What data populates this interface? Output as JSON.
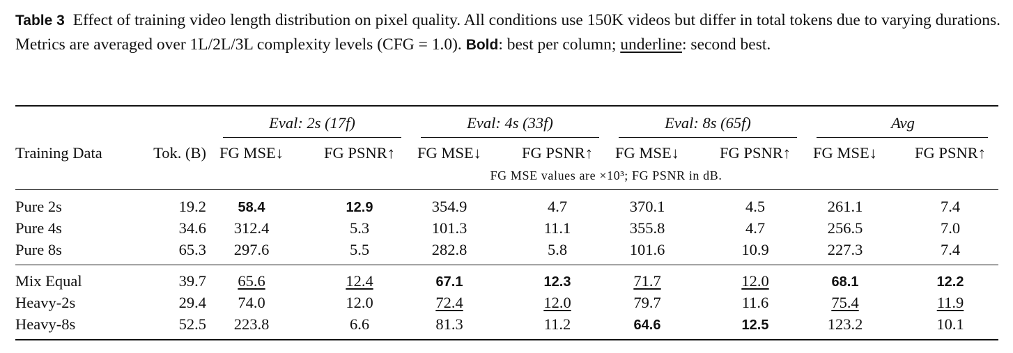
{
  "caption": {
    "label": "Table 3",
    "text_1": "Effect of training video length distribution on pixel quality. All conditions use 150K videos but differ in total tokens due to varying durations. Metrics are averaged over 1L/2L/3L complexity levels (CFG = 1.0). ",
    "bold_word": "Bold",
    "text_2": ": best per column; ",
    "underline_word": "underline",
    "text_3": ": second best."
  },
  "table": {
    "group_headers": [
      "Eval: 2s (17f)",
      "Eval: 4s (33f)",
      "Eval: 8s (65f)",
      "Avg"
    ],
    "col_headers": {
      "training_data": "Training Data",
      "tokens": "Tok. (B)",
      "metrics": [
        "FG MSE↓",
        "FG PSNR↑",
        "FG MSE↓",
        "FG PSNR↑",
        "FG MSE↓",
        "FG PSNR↑",
        "FG MSE↓",
        "FG PSNR↑"
      ]
    },
    "note": "FG MSE values are ×10³; FG PSNR in dB.",
    "rows": [
      {
        "name": "Pure 2s",
        "tok": "19.2",
        "vals": [
          "58.4",
          "12.9",
          "354.9",
          "4.7",
          "370.1",
          "4.5",
          "261.1",
          "7.4"
        ],
        "styles": [
          "b",
          "b",
          "",
          "",
          "",
          "",
          "",
          ""
        ]
      },
      {
        "name": "Pure 4s",
        "tok": "34.6",
        "vals": [
          "312.4",
          "5.3",
          "101.3",
          "11.1",
          "355.8",
          "4.7",
          "256.5",
          "7.0"
        ],
        "styles": [
          "",
          "",
          "",
          "",
          "",
          "",
          "",
          ""
        ]
      },
      {
        "name": "Pure 8s",
        "tok": "65.3",
        "vals": [
          "297.6",
          "5.5",
          "282.8",
          "5.8",
          "101.6",
          "10.9",
          "227.3",
          "7.4"
        ],
        "styles": [
          "",
          "",
          "",
          "",
          "",
          "",
          "",
          ""
        ]
      },
      {
        "name": "Mix Equal",
        "tok": "39.7",
        "vals": [
          "65.6",
          "12.4",
          "67.1",
          "12.3",
          "71.7",
          "12.0",
          "68.1",
          "12.2"
        ],
        "styles": [
          "u",
          "u",
          "b",
          "b",
          "u",
          "u",
          "b",
          "b"
        ]
      },
      {
        "name": "Heavy-2s",
        "tok": "29.4",
        "vals": [
          "74.0",
          "12.0",
          "72.4",
          "12.0",
          "79.7",
          "11.6",
          "75.4",
          "11.9"
        ],
        "styles": [
          "",
          "",
          "u",
          "u",
          "",
          "",
          "u",
          "u"
        ]
      },
      {
        "name": "Heavy-8s",
        "tok": "52.5",
        "vals": [
          "223.8",
          "6.6",
          "81.3",
          "11.2",
          "64.6",
          "12.5",
          "123.2",
          "10.1"
        ],
        "styles": [
          "",
          "",
          "",
          "",
          "b",
          "b",
          "",
          ""
        ]
      }
    ]
  }
}
